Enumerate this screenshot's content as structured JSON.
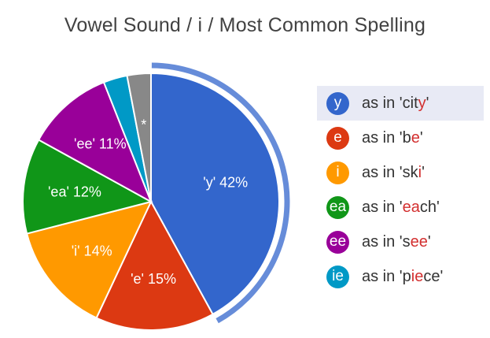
{
  "chart_data": {
    "type": "pie",
    "title": "Vowel Sound / i / Most Common Spelling",
    "slices": [
      {
        "label": "'y' 42%",
        "value": 42,
        "color": "#3366cc",
        "selected": true
      },
      {
        "label": "'e' 15%",
        "value": 15,
        "color": "#dc3912"
      },
      {
        "label": "'i' 14%",
        "value": 14,
        "color": "#ff9900"
      },
      {
        "label": "'ea' 12%",
        "value": 12,
        "color": "#109618"
      },
      {
        "label": "'ee' 11%",
        "value": 11,
        "color": "#990099"
      },
      {
        "label": "",
        "value": 3,
        "color": "#0099c6"
      },
      {
        "label": "*",
        "value": 3,
        "color": "#888888"
      }
    ],
    "legend": [
      {
        "badge": "y",
        "color": "#3366cc",
        "prefix": "as in '",
        "before": "cit",
        "highlight": "y",
        "after": "",
        "suffix": "'",
        "selected": true
      },
      {
        "badge": "e",
        "color": "#dc3912",
        "prefix": "as in '",
        "before": "b",
        "highlight": "e",
        "after": "",
        "suffix": "'"
      },
      {
        "badge": "i",
        "color": "#ff9900",
        "prefix": "as in '",
        "before": "sk",
        "highlight": "i",
        "after": "",
        "suffix": "'"
      },
      {
        "badge": "ea",
        "color": "#109618",
        "prefix": "as in '",
        "before": "",
        "highlight": "ea",
        "after": "ch",
        "suffix": "'"
      },
      {
        "badge": "ee",
        "color": "#990099",
        "prefix": "as in '",
        "before": "s",
        "highlight": "ee",
        "after": "",
        "suffix": "'"
      },
      {
        "badge": "ie",
        "color": "#0099c6",
        "prefix": "as in '",
        "before": "p",
        "highlight": "ie",
        "after": "ce",
        "suffix": "'"
      }
    ],
    "legend_position": "right"
  }
}
